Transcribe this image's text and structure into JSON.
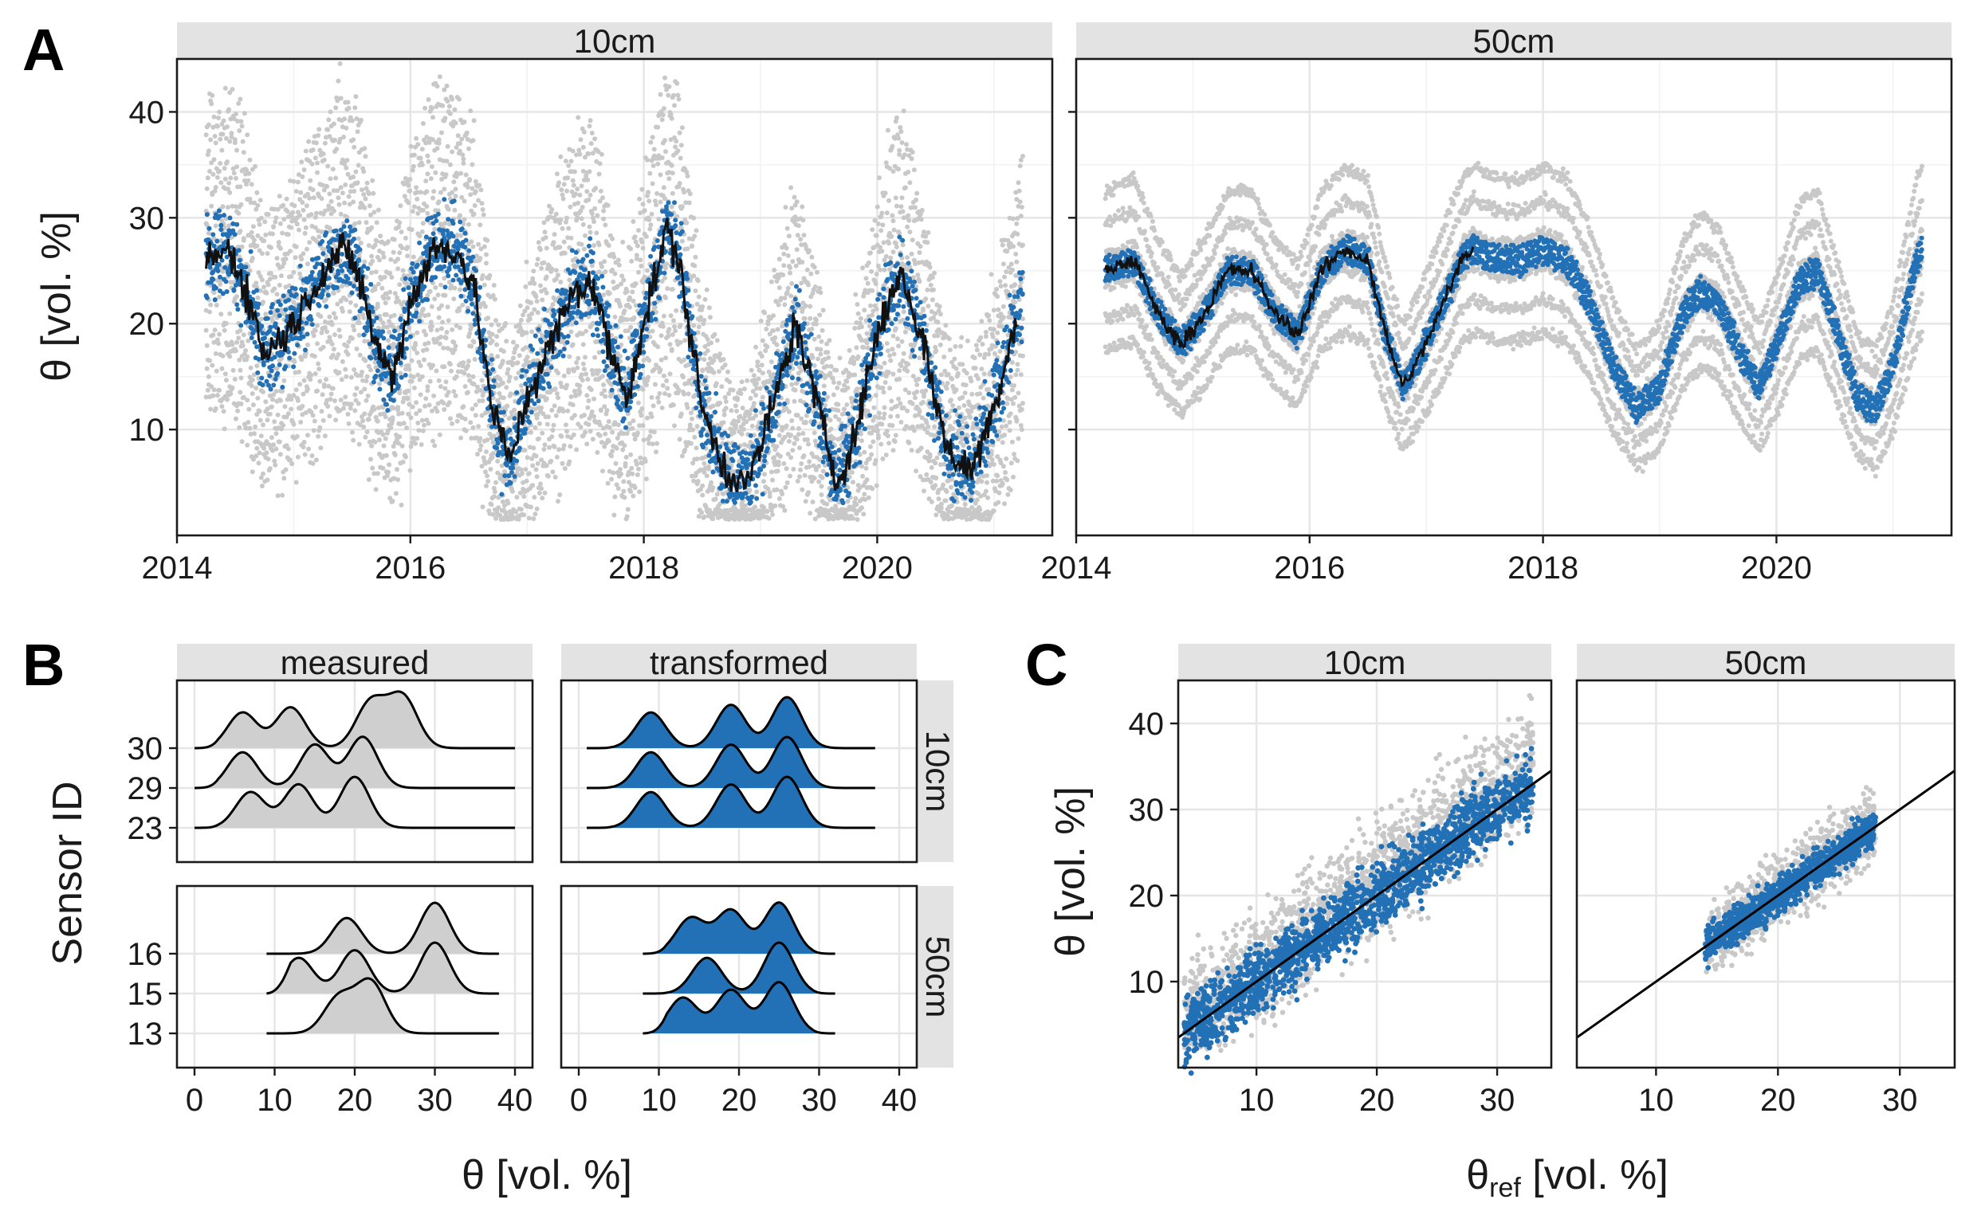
{
  "colors": {
    "raw": "#c8c8c8",
    "corrected": "#2270b5",
    "reference": "#111111",
    "strip": "#e3e3e3"
  },
  "panels": {
    "A": "A",
    "B": "B",
    "C": "C"
  },
  "strips": {
    "a_left": "10cm",
    "a_right": "50cm",
    "b_measured": "measured",
    "b_transformed": "transformed",
    "b_row_top": "10cm",
    "b_row_bottom": "50cm",
    "c_left": "10cm",
    "c_right": "50cm"
  },
  "axis_titles": {
    "a_y": "θ [vol. %]",
    "b_y": "Sensor ID",
    "b_x": "θ [vol. %]",
    "c_y": "θ [vol. %]",
    "c_x_main": "θ",
    "c_x_sub": "ref",
    "c_x_rest": " [vol. %]"
  },
  "chart_data": [
    {
      "id": "A",
      "type": "scatter",
      "facets": [
        "10cm",
        "50cm"
      ],
      "x_ticks": [
        "2014",
        "2016",
        "2018",
        "2020"
      ],
      "xlim": [
        2014,
        2021.5
      ],
      "y_ticks": [
        10,
        20,
        30,
        40
      ],
      "ylim": [
        0,
        45
      ],
      "series": [
        {
          "name": "",
          "color": "#c8c8c8"
        },
        {
          "name": "",
          "color": "#2270b5"
        },
        {
          "name": "",
          "color": "#111111"
        }
      ],
      "reference_10cm": [
        [
          2014.25,
          26
        ],
        [
          2014.45,
          27
        ],
        [
          2014.6,
          23
        ],
        [
          2014.75,
          17
        ],
        [
          2015.0,
          20
        ],
        [
          2015.2,
          24
        ],
        [
          2015.4,
          27
        ],
        [
          2015.55,
          25
        ],
        [
          2015.7,
          18
        ],
        [
          2015.85,
          15
        ],
        [
          2016.0,
          22
        ],
        [
          2016.2,
          27
        ],
        [
          2016.4,
          27
        ],
        [
          2016.55,
          23
        ],
        [
          2016.7,
          12
        ],
        [
          2016.85,
          7
        ],
        [
          2017.0,
          13
        ],
        [
          2017.2,
          18
        ],
        [
          2017.4,
          23
        ],
        [
          2017.55,
          24
        ],
        [
          2017.7,
          18
        ],
        [
          2017.85,
          13
        ],
        [
          2018.0,
          20
        ],
        [
          2018.2,
          29
        ],
        [
          2018.3,
          26
        ],
        [
          2018.5,
          12
        ],
        [
          2018.7,
          6
        ],
        [
          2018.9,
          5
        ],
        [
          2019.1,
          12
        ],
        [
          2019.3,
          20
        ],
        [
          2019.45,
          14
        ],
        [
          2019.65,
          5
        ],
        [
          2019.8,
          9
        ],
        [
          2020.0,
          19
        ],
        [
          2020.2,
          25
        ],
        [
          2020.4,
          18
        ],
        [
          2020.6,
          8
        ],
        [
          2020.8,
          6
        ],
        [
          2021.0,
          12
        ],
        [
          2021.2,
          21
        ]
      ],
      "reference_50cm": [
        [
          2014.25,
          25
        ],
        [
          2014.5,
          26
        ],
        [
          2014.7,
          21
        ],
        [
          2014.9,
          18
        ],
        [
          2015.1,
          21
        ],
        [
          2015.3,
          25
        ],
        [
          2015.5,
          25
        ],
        [
          2015.7,
          21
        ],
        [
          2015.9,
          19
        ],
        [
          2016.1,
          25
        ],
        [
          2016.3,
          27
        ],
        [
          2016.5,
          26
        ],
        [
          2016.65,
          19
        ],
        [
          2016.8,
          14
        ],
        [
          2016.95,
          17
        ],
        [
          2017.15,
          22
        ],
        [
          2017.3,
          26
        ],
        [
          2017.4,
          27
        ]
      ]
    },
    {
      "id": "B",
      "type": "area",
      "columns": [
        "measured",
        "transformed"
      ],
      "rows": [
        "10cm",
        "50cm"
      ],
      "x_ticks": [
        0,
        10,
        20,
        30,
        40
      ],
      "xlim": [
        0,
        40
      ],
      "sensors": {
        "10cm": [
          "30",
          "29",
          "23"
        ],
        "50cm": [
          "16",
          "15",
          "13"
        ]
      },
      "density_peaks": {
        "measured_10cm": {
          "30": [
            6,
            12,
            22,
            26
          ],
          "29": [
            6,
            15,
            21
          ],
          "23": [
            7,
            13,
            20
          ]
        },
        "transformed_10cm": {
          "30": [
            9,
            19,
            26
          ],
          "29": [
            9,
            19,
            26
          ],
          "23": [
            9,
            19,
            26
          ]
        },
        "measured_50cm": {
          "16": [
            19,
            30
          ],
          "15": [
            13,
            20,
            30
          ],
          "13": [
            18,
            22
          ]
        },
        "transformed_50cm": {
          "16": [
            14,
            19,
            25
          ],
          "15": [
            16,
            25
          ],
          "13": [
            13,
            19,
            25
          ]
        }
      }
    },
    {
      "id": "C",
      "type": "scatter",
      "facets": [
        "10cm",
        "50cm"
      ],
      "x_ticks": [
        10,
        20,
        30
      ],
      "y_ticks": [
        10,
        20,
        30,
        40
      ],
      "xlim_10cm": [
        3.5,
        34.5
      ],
      "xlim_50cm": [
        3.5,
        34.5
      ],
      "ylim": [
        0,
        45
      ],
      "reference_line": {
        "slope": 1,
        "intercept": 0
      }
    }
  ]
}
